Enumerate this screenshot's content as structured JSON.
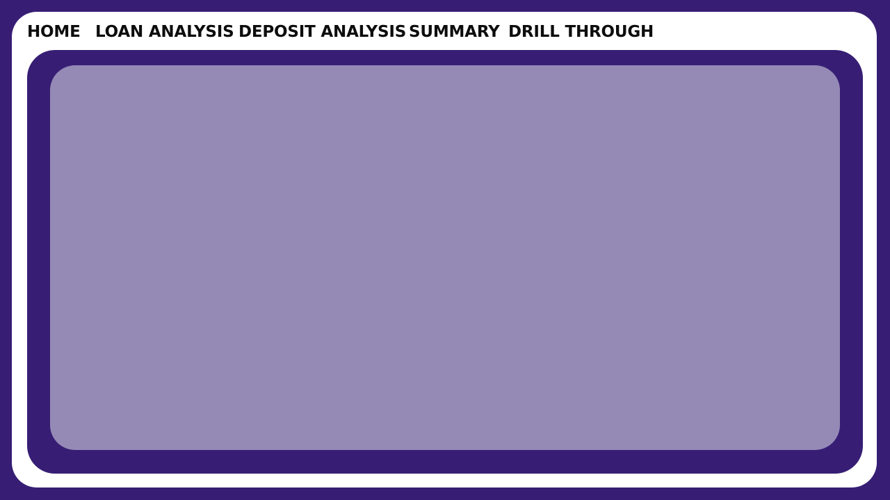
{
  "nav": {
    "items": [
      {
        "label": "HOME"
      },
      {
        "label": "LOAN ANALYSIS"
      },
      {
        "label": "DEPOSIT ANALYSIS"
      },
      {
        "label": "SUMMARY"
      },
      {
        "label": "DRILL THROUGH"
      }
    ]
  },
  "colors": {
    "background": "#371e74",
    "frame": "#ffffff",
    "panel_outer": "#371e74",
    "panel_inner": "#9589b6",
    "nav_text": "#0d0d0d"
  }
}
